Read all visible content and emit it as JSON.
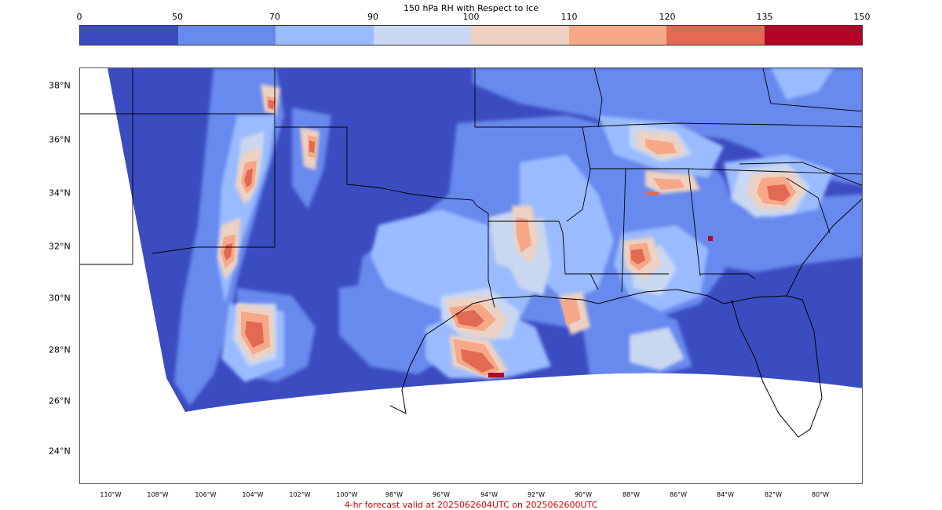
{
  "title": "150 hPa RH with Respect to Ice",
  "colorbar": {
    "ticks": [
      "0",
      "50",
      "70",
      "90",
      "100",
      "110",
      "120",
      "135",
      "150"
    ],
    "colors": [
      "#3b4cc0",
      "#6889ee",
      "#9abbff",
      "#c9d7f0",
      "#edd1c2",
      "#f7a889",
      "#e26952",
      "#b40426"
    ]
  },
  "map": {
    "background_color": "#3b4cc0",
    "lat_labels": [
      "38°N",
      "36°N",
      "34°N",
      "32°N",
      "30°N",
      "28°N",
      "26°N",
      "24°N"
    ],
    "lon_labels": [
      "110°W",
      "108°W",
      "106°W",
      "104°W",
      "102°W",
      "100°W",
      "98°W",
      "96°W",
      "94°W",
      "92°W",
      "90°W",
      "88°W",
      "86°W",
      "84°W",
      "82°W",
      "80°W"
    ]
  },
  "caption": "4-hr forecast valid at 2025062604UTC on 2025062600UTC"
}
